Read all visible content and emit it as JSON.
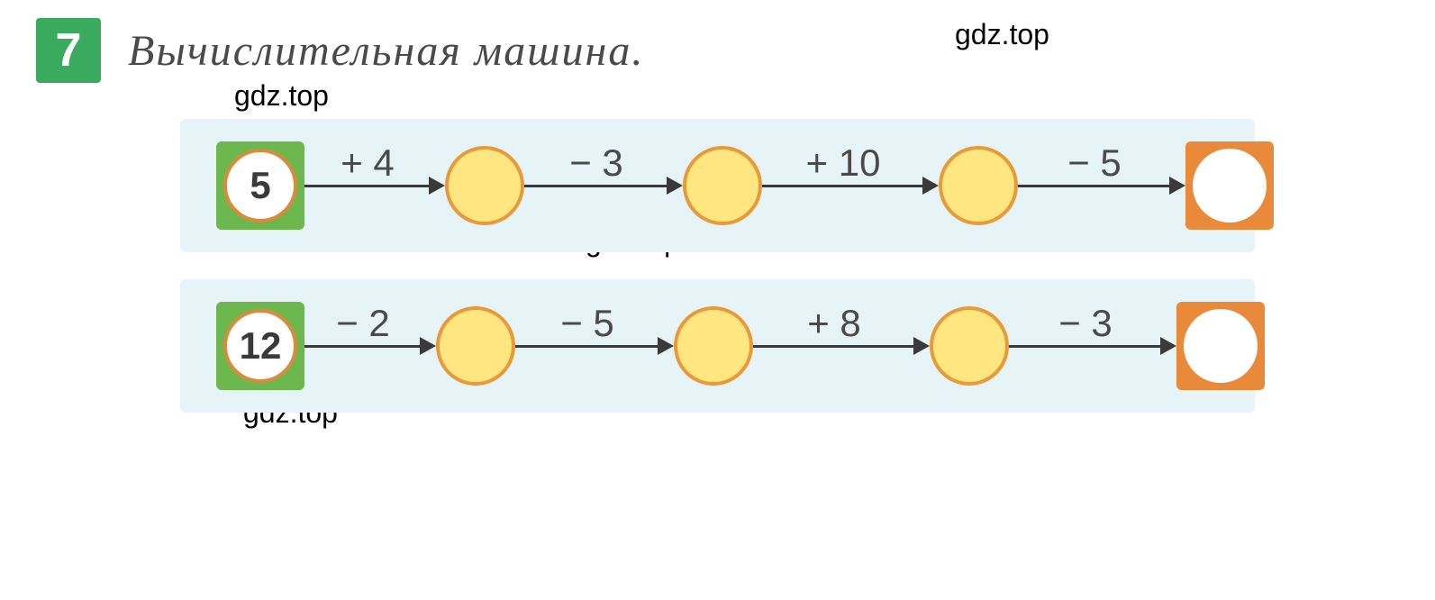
{
  "task": {
    "number": "7",
    "title": "Вычислительная   машина."
  },
  "watermark_text": "gdz.top",
  "colors": {
    "task_box_bg": "#3aaa5f",
    "task_number_color": "#ffffff",
    "title_color": "#4a4a4a",
    "row_bg": "#e6f4f7",
    "start_box_bg": "#6cb84f",
    "start_circle_bg": "#ffffff",
    "start_circle_border": "#d98a3a",
    "mid_circle_bg": "#ffe680",
    "mid_circle_border": "#e89a3a",
    "end_box_bg": "#e88a3a",
    "end_circle_bg": "#ffffff",
    "arrow_color": "#3a3a3a",
    "op_text_color": "#4a4a4a"
  },
  "typography": {
    "title_fontsize": 48,
    "title_style": "italic",
    "task_number_fontsize": 52,
    "op_fontsize": 42,
    "start_value_fontsize": 42,
    "watermark_fontsize": 32
  },
  "machines": [
    {
      "start": "5",
      "operations": [
        "+ 4",
        "− 3",
        "+ 10",
        "− 5"
      ],
      "arrow_widths": [
        140,
        160,
        180,
        170
      ]
    },
    {
      "start": "12",
      "operations": [
        "− 2",
        "− 5",
        "+ 8",
        "− 3"
      ],
      "arrow_widths": [
        130,
        160,
        180,
        170
      ]
    }
  ],
  "layout": {
    "circle_diameter": 88,
    "box_size": 98,
    "row_margin_top": 30
  }
}
